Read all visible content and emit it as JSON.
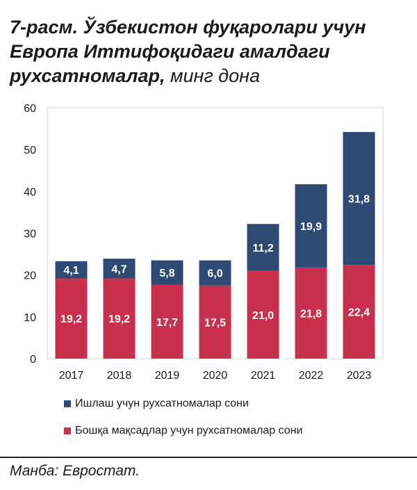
{
  "title": {
    "main": "7-расм. Ўзбекистон фуқаролари учун Европа Иттифоқидаги амалдаги рухсатномалар,",
    "unit": "минг дона"
  },
  "source": "Манба: Евростат.",
  "chart_data": {
    "type": "bar",
    "stacked": true,
    "categories": [
      "2017",
      "2018",
      "2019",
      "2020",
      "2021",
      "2022",
      "2023"
    ],
    "series": [
      {
        "name": "Бошқа мақсадлар учун рухсатномалар сони",
        "color": "#c8304d",
        "values": [
          19.2,
          19.2,
          17.7,
          17.5,
          21.0,
          21.8,
          22.4
        ],
        "labels": [
          "19,2",
          "19,2",
          "17,7",
          "17,5",
          "21,0",
          "21,8",
          "22,4"
        ]
      },
      {
        "name": "Ишлаш учун рухсатномалар сони",
        "color": "#2e4a72",
        "values": [
          4.1,
          4.7,
          5.8,
          6.0,
          11.2,
          19.9,
          31.8
        ],
        "labels": [
          "4,1",
          "4,7",
          "5,8",
          "6,0",
          "11,2",
          "19,9",
          "31,8"
        ]
      }
    ],
    "ylim": [
      0,
      60
    ],
    "yticks": [
      "0",
      "10",
      "20",
      "30",
      "40",
      "50",
      "60"
    ],
    "grid": false,
    "legend_position": "bottom-left"
  }
}
